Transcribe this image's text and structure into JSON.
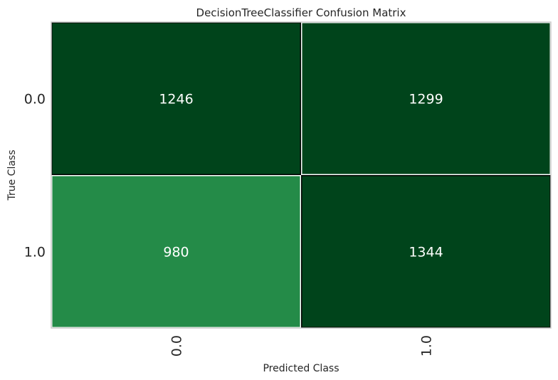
{
  "chart_data": {
    "type": "heatmap",
    "title": "DecisionTreeClassifier Confusion Matrix",
    "xlabel": "Predicted Class",
    "ylabel": "True Class",
    "x_categories": [
      "0.0",
      "1.0"
    ],
    "y_categories": [
      "0.0",
      "1.0"
    ],
    "values": [
      [
        1246,
        1299
      ],
      [
        980,
        1344
      ]
    ],
    "colors": {
      "high": "#00441b",
      "low": "#248b48",
      "cell_text": "#ffffff",
      "grid_diag": "#000000",
      "grid_offdiag": "#ffffff"
    },
    "grid": false
  }
}
